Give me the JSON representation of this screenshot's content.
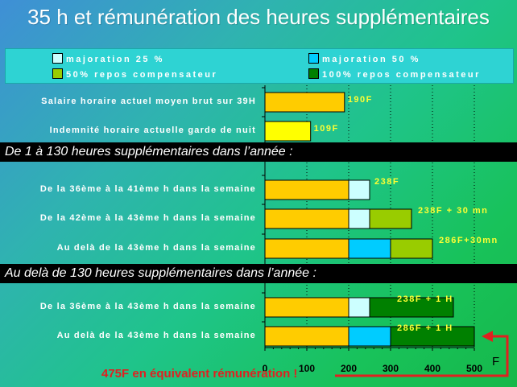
{
  "title": "35 h et rémunération des heures supplémentaires",
  "legend": [
    {
      "label": "majoration  25 %",
      "color": "#ccffff"
    },
    {
      "label": "majoration  50 %",
      "color": "#00ccff"
    },
    {
      "label": "50% repos compensateur",
      "color": "#99cc00"
    },
    {
      "label": "100% repos compensateur",
      "color": "#008000"
    }
  ],
  "section_headers": {
    "section1": "De 1 à 130 heures supplémentaires dans l’année :",
    "section2": "Au delà de 130 heures supplémentaires dans l’année :"
  },
  "callout": "475F en équivalent rémunération !",
  "colors": {
    "base": "#ffcc00",
    "base_night": "#ffff00",
    "callout": "#e02020",
    "value_label": "#ffff33"
  },
  "chart_data": {
    "type": "bar",
    "orientation": "horizontal",
    "stacked": true,
    "xlabel": "F",
    "xlim": [
      0,
      500
    ],
    "xticks": [
      0,
      100,
      200,
      300,
      400,
      500
    ],
    "grid": true,
    "categories": [
      "Salaire horaire actuel moyen brut sur 39H",
      "Indemnité horaire actuelle garde de nuit",
      "De la 36ème à la 41ème h dans la semaine",
      "De la 42ème à la 43ème h  dans la semaine",
      "Au delà de la 43ème h dans la semaine",
      "De la 36ème à la 43ème h dans la semaine",
      "Au delà de la 43ème h dans la semaine"
    ],
    "segments": [
      [
        {
          "value": 190,
          "color": "#ffcc00"
        }
      ],
      [
        {
          "value": 109,
          "color": "#ffff00"
        }
      ],
      [
        {
          "value": 200,
          "color": "#ffcc00"
        },
        {
          "value": 50,
          "color": "#ccffff"
        }
      ],
      [
        {
          "value": 200,
          "color": "#ffcc00"
        },
        {
          "value": 50,
          "color": "#ccffff"
        },
        {
          "value": 100,
          "color": "#99cc00"
        }
      ],
      [
        {
          "value": 200,
          "color": "#ffcc00"
        },
        {
          "value": 100,
          "color": "#00ccff"
        },
        {
          "value": 100,
          "color": "#99cc00"
        }
      ],
      [
        {
          "value": 200,
          "color": "#ffcc00"
        },
        {
          "value": 50,
          "color": "#ccffff"
        },
        {
          "value": 200,
          "color": "#008000"
        }
      ],
      [
        {
          "value": 200,
          "color": "#ffcc00"
        },
        {
          "value": 100,
          "color": "#00ccff"
        },
        {
          "value": 200,
          "color": "#008000"
        }
      ]
    ],
    "value_labels": [
      "190F",
      "109F",
      "238F",
      "238F + 30 mn",
      "286F+30mn",
      "238F + 1 H",
      "286F + 1 H"
    ]
  }
}
